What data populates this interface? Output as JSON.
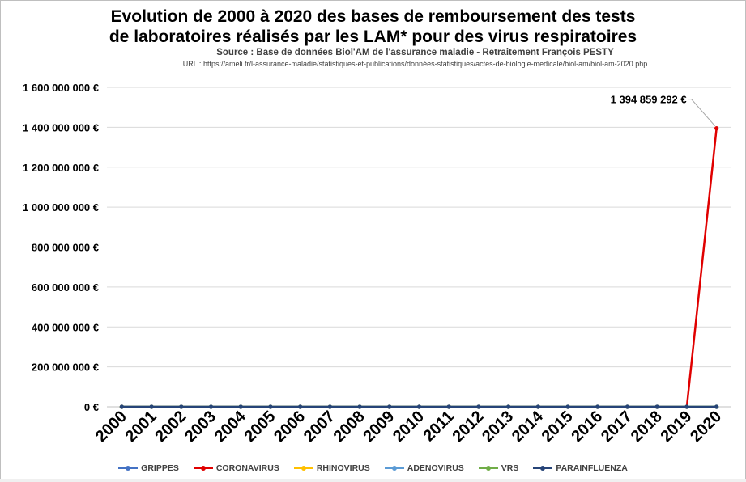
{
  "title_lines": [
    "Evolution de 2000 à 2020 des bases de remboursement des tests",
    "de laboratoires réalisés par les LAM* pour des virus respiratoires"
  ],
  "source": "Source : Base de données Biol'AM de l'assurance maladie - Retraitement François PESTY",
  "url": "URL : https://ameli.fr/l-assurance-maladie/statistiques-et-publications/données-statistiques/actes-de-biologie-medicale/biol-am/biol-am-2020.php",
  "chart_data": {
    "type": "line",
    "title": "Evolution de 2000 à 2020 des bases de remboursement des tests de laboratoires réalisés par les LAM* pour des virus respiratoires",
    "xlabel": "",
    "ylabel": "",
    "categories": [
      "2000",
      "2001",
      "2002",
      "2003",
      "2004",
      "2005",
      "2006",
      "2007",
      "2008",
      "2009",
      "2010",
      "2011",
      "2012",
      "2013",
      "2014",
      "2015",
      "2016",
      "2017",
      "2018",
      "2019",
      "2020"
    ],
    "ylim": [
      0,
      1600000000
    ],
    "y_ticks": [
      0,
      200000000,
      400000000,
      600000000,
      800000000,
      1000000000,
      1200000000,
      1400000000,
      1600000000
    ],
    "y_tick_labels": [
      "0 €",
      "200 000 000 €",
      "400 000 000 €",
      "600 000 000 €",
      "800 000 000 €",
      "1 000 000 000 €",
      "1 200 000 000 €",
      "1 400 000 000 €",
      "1 600 000 000 €"
    ],
    "grid": true,
    "legend_position": "bottom",
    "series": [
      {
        "name": "GRIPPES",
        "color": "#4472c4",
        "values": [
          0,
          0,
          0,
          0,
          0,
          0,
          0,
          0,
          0,
          0,
          0,
          0,
          0,
          0,
          0,
          0,
          0,
          0,
          0,
          0,
          0
        ]
      },
      {
        "name": "CORONAVIRUS",
        "color": "#e00000",
        "values": [
          0,
          0,
          0,
          0,
          0,
          0,
          0,
          0,
          0,
          0,
          0,
          0,
          0,
          0,
          0,
          0,
          0,
          0,
          0,
          0,
          1394859292
        ]
      },
      {
        "name": "RHINOVIRUS",
        "color": "#ffc000",
        "values": [
          0,
          0,
          0,
          0,
          0,
          0,
          0,
          0,
          0,
          0,
          0,
          0,
          0,
          0,
          0,
          0,
          0,
          0,
          0,
          0,
          0
        ]
      },
      {
        "name": "ADENOVIRUS",
        "color": "#5b9bd5",
        "values": [
          0,
          0,
          0,
          0,
          0,
          0,
          0,
          0,
          0,
          0,
          0,
          0,
          0,
          0,
          0,
          0,
          0,
          0,
          0,
          0,
          0
        ]
      },
      {
        "name": "VRS",
        "color": "#70ad47",
        "values": [
          0,
          0,
          0,
          0,
          0,
          0,
          0,
          0,
          0,
          0,
          0,
          0,
          0,
          0,
          0,
          0,
          0,
          0,
          0,
          0,
          0
        ]
      },
      {
        "name": "PARAINFLUENZA",
        "color": "#264478",
        "values": [
          0,
          0,
          0,
          0,
          0,
          0,
          0,
          0,
          0,
          0,
          0,
          0,
          0,
          0,
          0,
          0,
          0,
          0,
          0,
          0,
          0
        ]
      }
    ],
    "annotations": [
      {
        "series": "CORONAVIRUS",
        "category": "2020",
        "text": "1 394 859 292 €"
      }
    ]
  }
}
